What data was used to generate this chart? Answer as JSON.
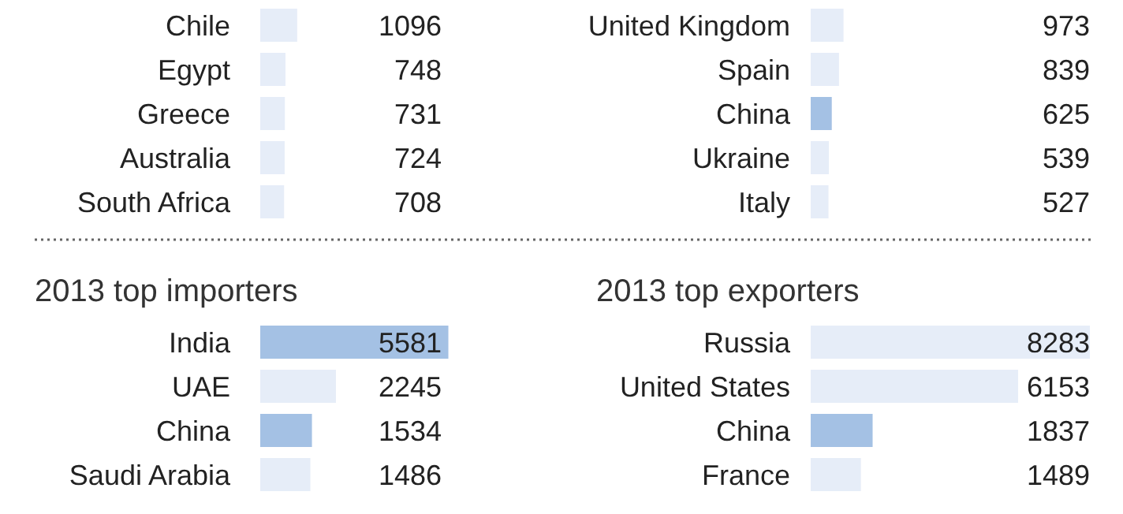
{
  "chart_data": [
    {
      "type": "bar",
      "orientation": "horizontal",
      "categories": [
        "Chile",
        "Egypt",
        "Greece",
        "Australia",
        "South Africa"
      ],
      "values": [
        1096,
        748,
        731,
        724,
        708
      ],
      "colors": [
        "#e6edf8",
        "#e6edf8",
        "#e6edf8",
        "#e6edf8",
        "#e6edf8"
      ],
      "data_labels": true
    },
    {
      "type": "bar",
      "orientation": "horizontal",
      "categories": [
        "United Kingdom",
        "Spain",
        "China",
        "Ukraine",
        "Italy"
      ],
      "values": [
        973,
        839,
        625,
        539,
        527
      ],
      "colors": [
        "#e6edf8",
        "#e6edf8",
        "#a4c1e4",
        "#e6edf8",
        "#e6edf8"
      ],
      "data_labels": true
    },
    {
      "type": "bar",
      "orientation": "horizontal",
      "title": "2013 top importers",
      "categories": [
        "India",
        "UAE",
        "China",
        "Saudi Arabia"
      ],
      "values": [
        5581,
        2245,
        1534,
        1486
      ],
      "colors": [
        "#a4c1e4",
        "#e6edf8",
        "#a4c1e4",
        "#e6edf8"
      ],
      "data_labels": true
    },
    {
      "type": "bar",
      "orientation": "horizontal",
      "title": "2013 top exporters",
      "categories": [
        "Russia",
        "United States",
        "China",
        "France"
      ],
      "values": [
        8283,
        6153,
        1837,
        1489
      ],
      "colors": [
        "#e6edf8",
        "#e6edf8",
        "#a4c1e4",
        "#e6edf8"
      ],
      "data_labels": true
    }
  ]
}
